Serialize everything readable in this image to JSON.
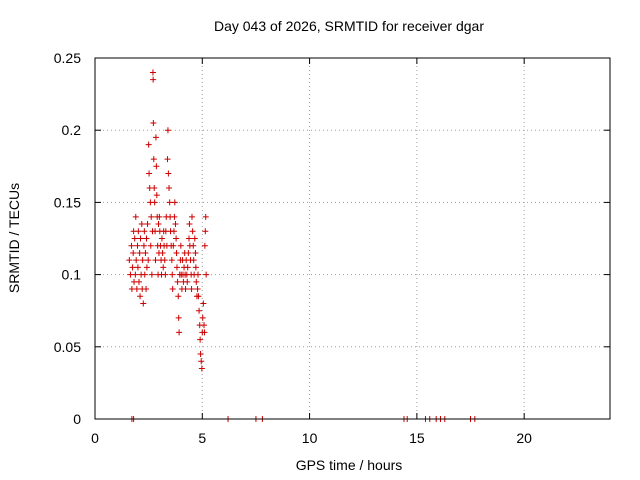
{
  "chart_data": {
    "type": "scatter",
    "title": "Day 043 of 2026, SRMTID for receiver dgar",
    "xlabel": "GPS time / hours",
    "ylabel": "SRMTID / TECUs",
    "xlim": [
      0,
      24
    ],
    "ylim": [
      0,
      0.25
    ],
    "x_ticks": [
      0,
      5,
      10,
      15,
      20
    ],
    "x_tick_labels": [
      "0",
      "5",
      "10",
      "15",
      "20"
    ],
    "y_ticks": [
      0,
      0.05,
      0.1,
      0.15,
      0.2,
      0.25
    ],
    "y_tick_labels": [
      "0",
      "0.05",
      "0.1",
      "0.15",
      "0.2",
      "0.25"
    ],
    "grid": true,
    "marker": "plus",
    "series": [
      {
        "color": "#cc0000",
        "points": [
          [
            1.6,
            0.11
          ],
          [
            1.65,
            0.1
          ],
          [
            1.7,
            0.12
          ],
          [
            1.72,
            0.09
          ],
          [
            1.75,
            0.105
          ],
          [
            1.78,
            0.115
          ],
          [
            1.8,
            0.13
          ],
          [
            1.82,
            0.095
          ],
          [
            1.85,
            0.125
          ],
          [
            1.88,
            0.1
          ],
          [
            1.9,
            0.14
          ],
          [
            1.92,
            0.11
          ],
          [
            1.95,
            0.09
          ],
          [
            1.98,
            0.12
          ],
          [
            2.0,
            0.105
          ],
          [
            2.02,
            0.13
          ],
          [
            2.05,
            0.095
          ],
          [
            2.08,
            0.115
          ],
          [
            2.1,
            0.085
          ],
          [
            2.12,
            0.125
          ],
          [
            2.15,
            0.1
          ],
          [
            2.18,
            0.135
          ],
          [
            2.2,
            0.09
          ],
          [
            2.22,
            0.11
          ],
          [
            2.25,
            0.08
          ],
          [
            2.28,
            0.12
          ],
          [
            2.3,
            0.13
          ],
          [
            2.32,
            0.1
          ],
          [
            2.35,
            0.115
          ],
          [
            2.38,
            0.09
          ],
          [
            2.4,
            0.125
          ],
          [
            2.42,
            0.105
          ],
          [
            2.45,
            0.135
          ],
          [
            2.48,
            0.11
          ],
          [
            2.5,
            0.19
          ],
          [
            2.52,
            0.17
          ],
          [
            2.55,
            0.16
          ],
          [
            2.58,
            0.15
          ],
          [
            2.6,
            0.12
          ],
          [
            2.62,
            0.14
          ],
          [
            2.65,
            0.1
          ],
          [
            2.68,
            0.13
          ],
          [
            2.7,
            0.24
          ],
          [
            2.71,
            0.235
          ],
          [
            2.72,
            0.205
          ],
          [
            2.74,
            0.18
          ],
          [
            2.76,
            0.16
          ],
          [
            2.78,
            0.15
          ],
          [
            2.8,
            0.13
          ],
          [
            2.82,
            0.11
          ],
          [
            2.84,
            0.195
          ],
          [
            2.86,
            0.175
          ],
          [
            2.88,
            0.155
          ],
          [
            2.9,
            0.14
          ],
          [
            2.92,
            0.12
          ],
          [
            2.94,
            0.1
          ],
          [
            2.96,
            0.135
          ],
          [
            2.98,
            0.115
          ],
          [
            3.0,
            0.14
          ],
          [
            3.02,
            0.13
          ],
          [
            3.05,
            0.12
          ],
          [
            3.08,
            0.11
          ],
          [
            3.1,
            0.1
          ],
          [
            3.12,
            0.125
          ],
          [
            3.15,
            0.115
          ],
          [
            3.18,
            0.105
          ],
          [
            3.2,
            0.13
          ],
          [
            3.22,
            0.12
          ],
          [
            3.25,
            0.11
          ],
          [
            3.28,
            0.1
          ],
          [
            3.3,
            0.13
          ],
          [
            3.32,
            0.14
          ],
          [
            3.35,
            0.12
          ],
          [
            3.38,
            0.18
          ],
          [
            3.4,
            0.2
          ],
          [
            3.42,
            0.17
          ],
          [
            3.45,
            0.16
          ],
          [
            3.48,
            0.15
          ],
          [
            3.5,
            0.14
          ],
          [
            3.52,
            0.13
          ],
          [
            3.55,
            0.12
          ],
          [
            3.58,
            0.11
          ],
          [
            3.6,
            0.1
          ],
          [
            3.62,
            0.09
          ],
          [
            3.65,
            0.12
          ],
          [
            3.68,
            0.13
          ],
          [
            3.7,
            0.14
          ],
          [
            3.72,
            0.15
          ],
          [
            3.75,
            0.135
          ],
          [
            3.78,
            0.125
          ],
          [
            3.8,
            0.115
          ],
          [
            3.82,
            0.105
          ],
          [
            3.85,
            0.095
          ],
          [
            3.88,
            0.085
          ],
          [
            3.9,
            0.07
          ],
          [
            3.92,
            0.06
          ],
          [
            3.95,
            0.1
          ],
          [
            3.98,
            0.11
          ],
          [
            4.0,
            0.12
          ],
          [
            4.02,
            0.1
          ],
          [
            4.05,
            0.09
          ],
          [
            4.08,
            0.11
          ],
          [
            4.1,
            0.1
          ],
          [
            4.12,
            0.095
          ],
          [
            4.15,
            0.105
          ],
          [
            4.18,
            0.115
          ],
          [
            4.2,
            0.1
          ],
          [
            4.22,
            0.09
          ],
          [
            4.25,
            0.11
          ],
          [
            4.28,
            0.1
          ],
          [
            4.3,
            0.095
          ],
          [
            4.32,
            0.105
          ],
          [
            4.35,
            0.115
          ],
          [
            4.38,
            0.125
          ],
          [
            4.4,
            0.135
          ],
          [
            4.42,
            0.12
          ],
          [
            4.45,
            0.11
          ],
          [
            4.48,
            0.1
          ],
          [
            4.5,
            0.09
          ],
          [
            4.52,
            0.14
          ],
          [
            4.55,
            0.13
          ],
          [
            4.58,
            0.12
          ],
          [
            4.6,
            0.11
          ],
          [
            4.62,
            0.1
          ],
          [
            4.65,
            0.125
          ],
          [
            4.68,
            0.115
          ],
          [
            4.7,
            0.105
          ],
          [
            4.72,
            0.095
          ],
          [
            4.75,
            0.085
          ],
          [
            4.78,
            0.09
          ],
          [
            4.8,
            0.1
          ],
          [
            4.82,
            0.085
          ],
          [
            4.85,
            0.075
          ],
          [
            4.88,
            0.065
          ],
          [
            4.9,
            0.055
          ],
          [
            4.92,
            0.045
          ],
          [
            4.95,
            0.04
          ],
          [
            4.98,
            0.035
          ],
          [
            5.0,
            0.06
          ],
          [
            5.02,
            0.07
          ],
          [
            5.05,
            0.08
          ],
          [
            5.08,
            0.065
          ],
          [
            5.1,
            0.06
          ],
          [
            5.12,
            0.12
          ],
          [
            5.14,
            0.13
          ],
          [
            5.16,
            0.14
          ],
          [
            5.18,
            0.1
          ],
          [
            1.72,
            0.0
          ],
          [
            1.8,
            0.0
          ],
          [
            6.2,
            0.0
          ],
          [
            7.5,
            0.0
          ],
          [
            7.8,
            0.0
          ],
          [
            14.4,
            0.0
          ],
          [
            14.55,
            0.0
          ],
          [
            15.4,
            0.0
          ],
          [
            15.6,
            0.0
          ],
          [
            15.9,
            0.0
          ],
          [
            16.1,
            0.0
          ],
          [
            16.3,
            0.0
          ],
          [
            17.5,
            0.0
          ],
          [
            17.7,
            0.0
          ]
        ]
      }
    ]
  }
}
